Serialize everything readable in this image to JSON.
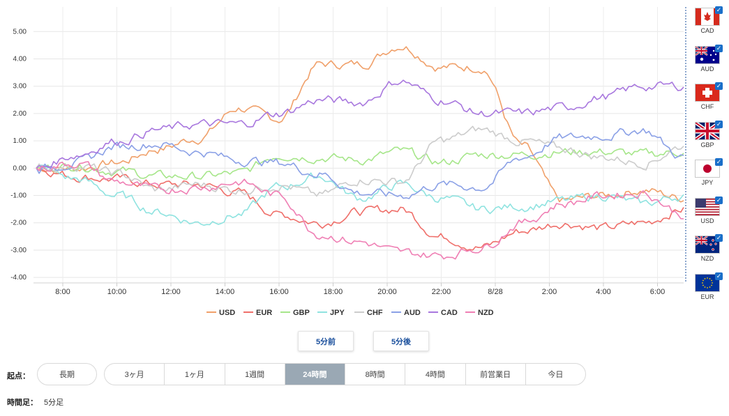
{
  "chart_data": {
    "type": "line",
    "y_ticks": [
      "5.00",
      "4.00",
      "3.00",
      "2.00",
      "1.00",
      "0.00",
      "-1.00",
      "-2.00",
      "-3.00",
      "-4.00"
    ],
    "ylim": [
      -4.2,
      5.9
    ],
    "x_ticks": [
      "8:00",
      "10:00",
      "12:00",
      "14:00",
      "16:00",
      "18:00",
      "20:00",
      "22:00",
      "8/28",
      "2:00",
      "4:00",
      "6:00"
    ],
    "grid": true,
    "legend_position": "bottom",
    "series": [
      {
        "name": "USD",
        "color": "#f0a06a",
        "key": [
          [
            0,
            0
          ],
          [
            1,
            0
          ],
          [
            2,
            0.2
          ],
          [
            3,
            0.7
          ],
          [
            4,
            1.1
          ],
          [
            5,
            2.2
          ],
          [
            6,
            1.8
          ],
          [
            7,
            3.8
          ],
          [
            8,
            3.8
          ],
          [
            9,
            4.5
          ],
          [
            10,
            3.7
          ],
          [
            11,
            3.7
          ],
          [
            12,
            0.8
          ],
          [
            13,
            -1.2
          ],
          [
            14,
            -1.0
          ],
          [
            15,
            -0.8
          ],
          [
            16,
            -1.1
          ]
        ]
      },
      {
        "name": "EUR",
        "color": "#ef6f6a",
        "key": [
          [
            0,
            0
          ],
          [
            1,
            -0.3
          ],
          [
            2,
            -0.4
          ],
          [
            3,
            -0.6
          ],
          [
            4,
            -0.6
          ],
          [
            5,
            -0.9
          ],
          [
            6,
            -1.7
          ],
          [
            7,
            -2.0
          ],
          [
            8,
            -1.6
          ],
          [
            9,
            -1.5
          ],
          [
            10,
            -2.5
          ],
          [
            11,
            -2.9
          ],
          [
            12,
            -2.3
          ],
          [
            13,
            -2.0
          ],
          [
            14,
            -2.2
          ],
          [
            15,
            -2.0
          ],
          [
            16,
            -1.5
          ]
        ]
      },
      {
        "name": "GBP",
        "color": "#a6e68a",
        "key": [
          [
            0,
            0
          ],
          [
            1,
            0.1
          ],
          [
            2,
            -0.1
          ],
          [
            3,
            -0.3
          ],
          [
            4,
            -0.3
          ],
          [
            5,
            -0.2
          ],
          [
            6,
            0.5
          ],
          [
            7,
            0.4
          ],
          [
            8,
            0.3
          ],
          [
            9,
            0.6
          ],
          [
            10,
            0.2
          ],
          [
            11,
            0.5
          ],
          [
            12,
            0.5
          ],
          [
            13,
            0.6
          ],
          [
            14,
            0.6
          ],
          [
            15,
            0.5
          ],
          [
            16,
            0.6
          ]
        ]
      },
      {
        "name": "JPY",
        "color": "#8fe3e0",
        "key": [
          [
            0,
            0
          ],
          [
            1,
            -0.4
          ],
          [
            2,
            -1.0
          ],
          [
            3,
            -1.6
          ],
          [
            4,
            -2.0
          ],
          [
            5,
            -1.7
          ],
          [
            6,
            -0.7
          ],
          [
            7,
            -0.3
          ],
          [
            8,
            -1.1
          ],
          [
            9,
            -0.6
          ],
          [
            10,
            -1.1
          ],
          [
            11,
            -1.5
          ],
          [
            12,
            -1.4
          ],
          [
            13,
            -1.2
          ],
          [
            14,
            -1.0
          ],
          [
            15,
            -1.3
          ],
          [
            16,
            -1.0
          ]
        ]
      },
      {
        "name": "CHF",
        "color": "#cccccc",
        "key": [
          [
            0,
            0
          ],
          [
            1,
            0.1
          ],
          [
            2,
            -0.2
          ],
          [
            3,
            -0.8
          ],
          [
            4,
            -0.6
          ],
          [
            5,
            -0.8
          ],
          [
            6,
            -0.6
          ],
          [
            7,
            -1.0
          ],
          [
            8,
            -0.4
          ],
          [
            9,
            -0.5
          ],
          [
            10,
            1.0
          ],
          [
            11,
            1.4
          ],
          [
            12,
            1.0
          ],
          [
            13,
            0.7
          ],
          [
            14,
            0.4
          ],
          [
            15,
            0.2
          ],
          [
            16,
            0.8
          ]
        ]
      },
      {
        "name": "AUD",
        "color": "#8aa0e6",
        "key": [
          [
            0,
            0
          ],
          [
            1,
            0.2
          ],
          [
            2,
            0.8
          ],
          [
            3,
            0.9
          ],
          [
            4,
            0.6
          ],
          [
            5,
            0.3
          ],
          [
            6,
            0.2
          ],
          [
            7,
            -0.2
          ],
          [
            8,
            -0.9
          ],
          [
            9,
            -1.0
          ],
          [
            10,
            -0.6
          ],
          [
            11,
            -0.7
          ],
          [
            12,
            0.4
          ],
          [
            13,
            1.1
          ],
          [
            14,
            1.2
          ],
          [
            15,
            1.4
          ],
          [
            16,
            0.4
          ]
        ]
      },
      {
        "name": "CAD",
        "color": "#a877de",
        "key": [
          [
            0,
            0
          ],
          [
            1,
            0.5
          ],
          [
            2,
            1.0
          ],
          [
            3,
            1.4
          ],
          [
            4,
            1.6
          ],
          [
            5,
            1.6
          ],
          [
            6,
            2.0
          ],
          [
            7,
            2.5
          ],
          [
            8,
            2.4
          ],
          [
            9,
            3.2
          ],
          [
            10,
            2.5
          ],
          [
            11,
            2.0
          ],
          [
            12,
            2.0
          ],
          [
            13,
            2.2
          ],
          [
            14,
            2.6
          ],
          [
            15,
            3.0
          ],
          [
            16,
            3.0
          ]
        ]
      },
      {
        "name": "NZD",
        "color": "#ef7fb4",
        "key": [
          [
            0,
            0
          ],
          [
            1,
            0.2
          ],
          [
            2,
            -0.5
          ],
          [
            3,
            -0.8
          ],
          [
            4,
            -0.7
          ],
          [
            5,
            -0.5
          ],
          [
            6,
            -1.0
          ],
          [
            7,
            -2.4
          ],
          [
            8,
            -2.7
          ],
          [
            9,
            -3.1
          ],
          [
            10,
            -3.2
          ],
          [
            11,
            -2.9
          ],
          [
            12,
            -2.0
          ],
          [
            13,
            -1.3
          ],
          [
            14,
            -1.0
          ],
          [
            15,
            -0.9
          ],
          [
            16,
            -1.7
          ]
        ]
      }
    ]
  },
  "currency_panel": [
    {
      "label": "CAD",
      "flag": "ca-flag"
    },
    {
      "label": "AUD",
      "flag": "au-flag"
    },
    {
      "label": "CHF",
      "flag": "ch-flag"
    },
    {
      "label": "GBP",
      "flag": "gb-flag"
    },
    {
      "label": "JPY",
      "flag": "jp-flag"
    },
    {
      "label": "USD",
      "flag": "us-flag"
    },
    {
      "label": "NZD",
      "flag": "nz-flag"
    },
    {
      "label": "EUR",
      "flag": "eu-flag"
    }
  ],
  "check_icon": "✓",
  "controls": {
    "prev_label": "5分前",
    "next_label": "5分後",
    "start_label": "起点：",
    "long_term": "長期",
    "periods": [
      "3ヶ月",
      "1ヶ月",
      "1週間",
      "24時間",
      "8時間",
      "4時間",
      "前営業日",
      "今日"
    ],
    "active_period": "24時間",
    "timeframe_label": "時間足：",
    "timeframe_value": "5分足"
  }
}
